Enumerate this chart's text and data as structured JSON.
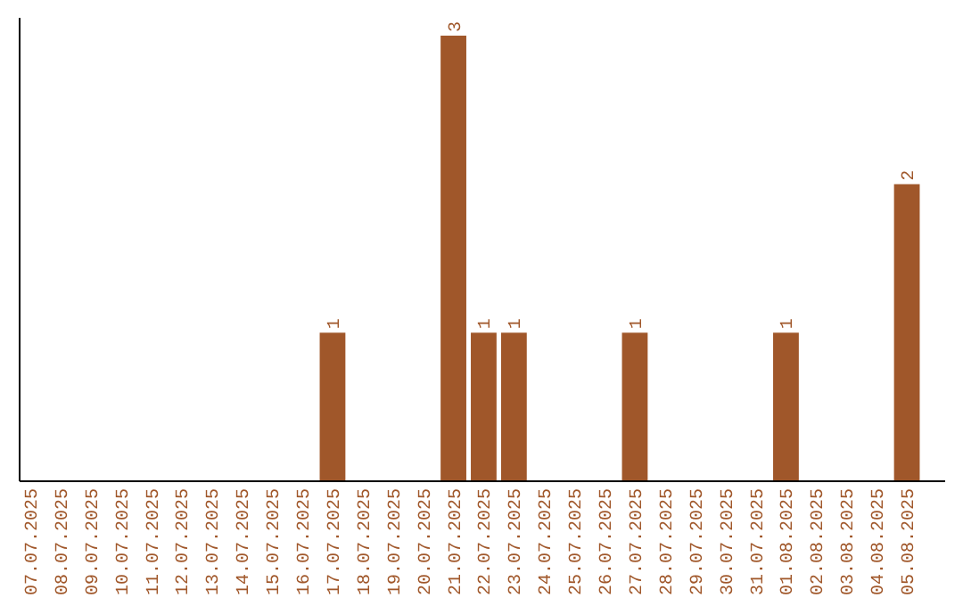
{
  "chart_data": {
    "type": "bar",
    "categories": [
      "07.07.2025",
      "08.07.2025",
      "09.07.2025",
      "10.07.2025",
      "11.07.2025",
      "12.07.2025",
      "13.07.2025",
      "14.07.2025",
      "15.07.2025",
      "16.07.2025",
      "17.07.2025",
      "18.07.2025",
      "19.07.2025",
      "20.07.2025",
      "21.07.2025",
      "22.07.2025",
      "23.07.2025",
      "24.07.2025",
      "25.07.2025",
      "26.07.2025",
      "27.07.2025",
      "28.07.2025",
      "29.07.2025",
      "30.07.2025",
      "31.07.2025",
      "01.08.2025",
      "02.08.2025",
      "03.08.2025",
      "04.08.2025",
      "05.08.2025"
    ],
    "values": [
      0,
      0,
      0,
      0,
      0,
      0,
      0,
      0,
      0,
      0,
      1,
      0,
      0,
      0,
      3,
      1,
      1,
      0,
      0,
      0,
      1,
      0,
      0,
      0,
      0,
      1,
      0,
      0,
      0,
      2
    ],
    "value_labels": [
      null,
      null,
      null,
      null,
      null,
      null,
      null,
      null,
      null,
      null,
      "1",
      null,
      null,
      null,
      "3",
      "1",
      "1",
      null,
      null,
      null,
      "1",
      null,
      null,
      null,
      null,
      "1",
      null,
      null,
      null,
      "2"
    ],
    "color": "#a0572a",
    "ylim": [
      0,
      3.12
    ],
    "tick_labels": "x"
  }
}
